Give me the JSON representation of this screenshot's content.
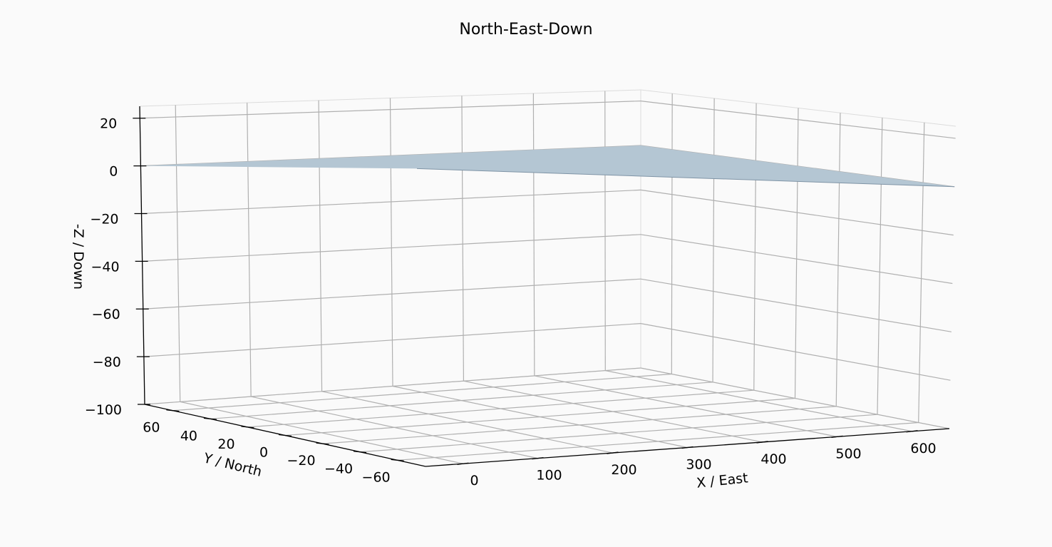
{
  "chart_data": {
    "type": "surface3d",
    "title": "North-East-Down",
    "xlabel": "X / East",
    "ylabel": "Y / North",
    "zlabel": "-Z / Down",
    "xlim": [
      -50,
      650
    ],
    "ylim": [
      -75,
      75
    ],
    "zlim": [
      -100,
      25
    ],
    "xticks": [
      0,
      100,
      200,
      300,
      400,
      500,
      600
    ],
    "yticks": [
      -60,
      -40,
      -20,
      0,
      20,
      40,
      60
    ],
    "zticks": [
      -100,
      -80,
      -60,
      -40,
      -20,
      0,
      20
    ],
    "xtick_labels": [
      "0",
      "100",
      "200",
      "300",
      "400",
      "500",
      "600"
    ],
    "ytick_labels": [
      "−60",
      "−40",
      "−20",
      "0",
      "20",
      "40",
      "60"
    ],
    "ztick_labels": [
      "−100",
      "−80",
      "−60",
      "−40",
      "−20",
      "0",
      "20"
    ],
    "grid": true,
    "surface": {
      "description_color": "#b4c6d3",
      "edge_color": "#7f94a6",
      "z": 0,
      "x_range": [
        -50,
        650
      ],
      "y_range": [
        -75,
        75
      ]
    },
    "pane_color": "#fafafa"
  }
}
